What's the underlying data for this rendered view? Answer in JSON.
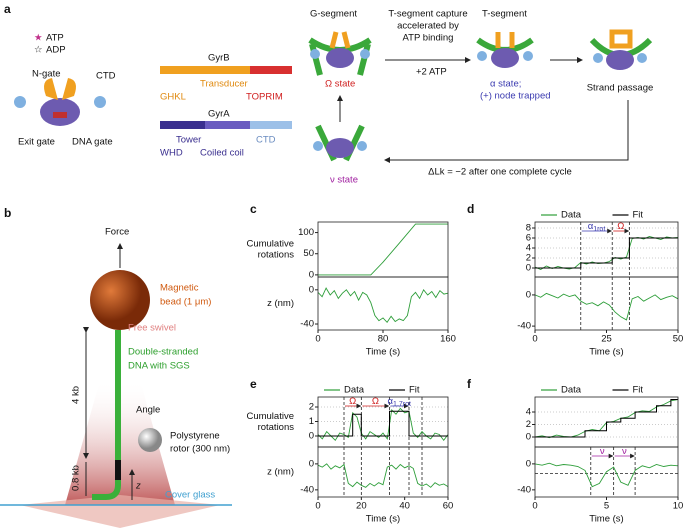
{
  "diagram": {
    "panel_a": "a",
    "panel_b": "b",
    "legend": [
      "ATP",
      "ADP"
    ],
    "parts": [
      "N-gate",
      "CTD",
      "Exit gate",
      "DNA gate"
    ],
    "gyrb": {
      "name": "GyrB",
      "mid": "Transducer",
      "left": "GHKL",
      "right": "TOPRIM"
    },
    "gyra": {
      "name": "GyrA",
      "top_left": "Tower",
      "top_right": "CTD",
      "left": "WHD",
      "mid": "Coiled coil"
    },
    "omega": {
      "segment": "G-segment",
      "state": "Ω state"
    },
    "capture": [
      "T-segment capture",
      "accelerated by",
      "ATP binding"
    ],
    "atp": "+2 ATP",
    "alpha": {
      "segment": "T-segment",
      "state": "α state;",
      "note": "(+) node trapped"
    },
    "passage": "Strand passage",
    "nu": "ν state",
    "cycle": "ΔLk = −2 after one complete cycle",
    "b": {
      "force": "Force",
      "bead": [
        "Magnetic",
        "bead (1 μm)"
      ],
      "swivel": "Free swivel",
      "dna": [
        "Double-stranded",
        "DNA with SGS"
      ],
      "kb4": "4 kb",
      "kb08": "0.8 kb",
      "angle": "Angle",
      "rotor": [
        "Polystyrene",
        "rotor (300 nm)"
      ],
      "z": "z",
      "glass": "Cover glass"
    }
  },
  "chart_data": [
    {
      "type": "line",
      "panel": "c",
      "ylabel": [
        "Cumulative",
        "rotations"
      ],
      "xlim": [
        0,
        160
      ],
      "ylim": [
        -5,
        125
      ],
      "yticks": [
        0,
        50,
        100
      ],
      "series": [
        {
          "color": "#2e9e3a",
          "x": [
            0,
            20,
            40,
            60,
            65,
            80,
            100,
            120,
            140,
            160
          ],
          "values": [
            0,
            0,
            0,
            0,
            0,
            30,
            75,
            120,
            120,
            120
          ]
        }
      ]
    },
    {
      "type": "line",
      "ylabel": [
        "z (nm)"
      ],
      "xlabel": "Time (s)",
      "xlim": [
        0,
        160
      ],
      "ylim": [
        -47,
        15
      ],
      "yticks": [
        -40,
        0
      ],
      "xticks": [
        0,
        80,
        160
      ],
      "series": [
        {
          "color": "#2e9e3a",
          "x": [
            0,
            5,
            10,
            15,
            20,
            25,
            30,
            35,
            40,
            45,
            50,
            55,
            60,
            65,
            70,
            75,
            80,
            85,
            90,
            95,
            100,
            105,
            110,
            115,
            120,
            125,
            130,
            135,
            140,
            145,
            150,
            155,
            160
          ],
          "values": [
            -3,
            -8,
            2,
            -6,
            -1,
            -10,
            -4,
            0,
            -7,
            -2,
            -12,
            -3,
            -6,
            -15,
            -30,
            -36,
            -33,
            -38,
            -31,
            -37,
            -34,
            -36,
            -30,
            -8,
            -3,
            -10,
            0,
            -6,
            -2,
            -9,
            -1,
            -5,
            -4
          ]
        }
      ]
    },
    {
      "type": "line",
      "panel": "d",
      "legend": "top",
      "grid": true,
      "xlim": [
        0,
        50
      ],
      "ylim": [
        -1.8,
        9.2
      ],
      "yticks": [
        0,
        2,
        4,
        6,
        8
      ],
      "vlines": [
        16,
        27,
        33
      ],
      "annotations": [
        {
          "text": "α",
          "sub": "1rot",
          "color": "#3b3bb0"
        },
        {
          "text": "Ω",
          "color": "#d02020"
        }
      ],
      "series": [
        {
          "name": "Data",
          "color": "#2e9e3a",
          "x": [
            0,
            2,
            4,
            6,
            8,
            10,
            12,
            14,
            16,
            18,
            20,
            22,
            24,
            26,
            28,
            30,
            32,
            34,
            36,
            38,
            40,
            42,
            44,
            46,
            48,
            50
          ],
          "values": [
            0.2,
            -0.3,
            0.4,
            -0.1,
            0.3,
            0,
            -0.2,
            0.1,
            1.1,
            0.8,
            1.2,
            0.9,
            1.0,
            1.3,
            2.1,
            1.8,
            2.2,
            5.9,
            6.1,
            5.8,
            6.3,
            6.0,
            5.7,
            6.2,
            6.0,
            6.1
          ]
        },
        {
          "name": "Fit",
          "color": "#000000",
          "x": [
            0,
            16,
            16,
            27,
            27,
            33,
            33,
            50
          ],
          "values": [
            0,
            0,
            1,
            1,
            2,
            2,
            6,
            6
          ]
        }
      ]
    },
    {
      "type": "line",
      "xlabel": "Time (s)",
      "xlim": [
        0,
        50
      ],
      "ylim": [
        -45,
        23
      ],
      "yticks": [
        -40,
        0
      ],
      "xticks": [
        0,
        25,
        50
      ],
      "vlines": [
        16,
        27,
        33
      ],
      "series": [
        {
          "color": "#2e9e3a",
          "x": [
            0,
            2,
            4,
            6,
            8,
            10,
            12,
            14,
            16,
            18,
            20,
            22,
            24,
            26,
            28,
            30,
            32,
            34,
            36,
            38,
            40,
            42,
            44,
            46,
            48,
            50
          ],
          "values": [
            0,
            -3,
            2,
            -1,
            -4,
            1,
            -2,
            0,
            -8,
            -12,
            -10,
            -14,
            -9,
            -13,
            -22,
            -28,
            -32,
            -5,
            -2,
            -8,
            -4,
            0,
            -6,
            -3,
            -1,
            -5
          ]
        }
      ]
    },
    {
      "type": "line",
      "panel": "e",
      "ylabel": [
        "Cumulative",
        "rotations"
      ],
      "legend": "top",
      "grid": true,
      "xlim": [
        0,
        60
      ],
      "ylim": [
        -0.76,
        2.69
      ],
      "yticks": [
        0,
        1,
        2
      ],
      "vlines": [
        12,
        20,
        33,
        42,
        48
      ],
      "annotations": [
        {
          "text": "Ω",
          "color": "#d02020"
        },
        {
          "text": "Ω",
          "color": "#d02020"
        },
        {
          "text": "α",
          "sub": "1.7rot",
          "color": "#3b3bb0"
        }
      ],
      "series": [
        {
          "name": "Data",
          "color": "#2e9e3a",
          "x": [
            0,
            2,
            4,
            6,
            8,
            10,
            12,
            14,
            16,
            18,
            20,
            22,
            24,
            26,
            28,
            30,
            32,
            34,
            36,
            38,
            40,
            42,
            44,
            46,
            48,
            50,
            52,
            54,
            56,
            58,
            60
          ],
          "values": [
            0.1,
            -0.2,
            0.3,
            0,
            -0.3,
            0.2,
            0.1,
            -0.1,
            1.6,
            1.3,
            0.2,
            -0.2,
            0.3,
            0.1,
            -0.1,
            0.2,
            -0.2,
            1.8,
            1.5,
            1.9,
            1.6,
            1.7,
            0.2,
            -0.1,
            0.3,
            0,
            -0.2,
            0.2,
            0.1,
            -0.3,
            0.1
          ]
        },
        {
          "name": "Fit",
          "color": "#000000",
          "x": [
            0,
            16,
            16,
            20,
            20,
            33,
            33,
            42,
            42,
            60
          ],
          "values": [
            0,
            0,
            1.5,
            1.5,
            0,
            0,
            1.7,
            1.7,
            0,
            0
          ]
        }
      ]
    },
    {
      "type": "line",
      "ylabel": [
        "z (nm)"
      ],
      "xlabel": "Time (s)",
      "xlim": [
        0,
        60
      ],
      "ylim": [
        -51,
        26
      ],
      "yticks": [
        -40,
        0
      ],
      "xticks": [
        0,
        20,
        40,
        60
      ],
      "vlines": [
        12,
        20,
        33,
        42,
        48
      ],
      "series": [
        {
          "color": "#2e9e3a",
          "x": [
            0,
            2,
            4,
            6,
            8,
            10,
            12,
            14,
            16,
            18,
            20,
            22,
            24,
            26,
            28,
            30,
            32,
            34,
            36,
            38,
            40,
            42,
            44,
            46,
            48,
            50,
            52,
            54,
            56,
            58,
            60
          ],
          "values": [
            -2,
            -5,
            0,
            -8,
            -3,
            -6,
            -1,
            -30,
            -35,
            -28,
            -33,
            -36,
            -30,
            -34,
            -29,
            -32,
            -5,
            -2,
            -8,
            -1,
            -6,
            -3,
            -7,
            -30,
            -34,
            -31,
            -36,
            -29,
            -33,
            -31,
            -35
          ]
        }
      ]
    },
    {
      "type": "line",
      "panel": "f",
      "legend": "top",
      "grid": true,
      "xlim": [
        0,
        10
      ],
      "ylim": [
        -1.6,
        6.4
      ],
      "yticks": [
        0,
        2,
        4
      ],
      "series": [
        {
          "name": "Data",
          "color": "#2e9e3a",
          "x": [
            0,
            0.5,
            1,
            1.5,
            2,
            2.5,
            3,
            3.5,
            4,
            4.5,
            5,
            5.5,
            6,
            6.5,
            7,
            7.5,
            8,
            8.5,
            9,
            9.5,
            10
          ],
          "values": [
            0,
            0.2,
            -0.1,
            0.3,
            0.1,
            0,
            0.3,
            0.9,
            1.2,
            1.0,
            2.3,
            2.5,
            3.0,
            3.2,
            3.9,
            4.2,
            4.1,
            4.8,
            5.2,
            5.8,
            6.0
          ]
        },
        {
          "name": "Fit",
          "color": "#000000",
          "x": [
            0,
            3.5,
            3.5,
            5,
            5,
            6,
            6,
            7,
            7,
            8.5,
            8.5,
            9.5,
            9.5,
            10
          ],
          "values": [
            0,
            0,
            1,
            1,
            2.4,
            2.4,
            3,
            3,
            4,
            4,
            5,
            5,
            6,
            6
          ]
        }
      ]
    },
    {
      "type": "line",
      "xlabel": "Time (s)",
      "xlim": [
        0,
        10
      ],
      "ylim": [
        -51,
        26
      ],
      "yticks": [
        -40,
        0
      ],
      "xticks": [
        0,
        5,
        10
      ],
      "hline": -15,
      "vlines": [
        3.9,
        5.5,
        7
      ],
      "annotations": [
        {
          "text": "ν",
          "color": "#a020a0"
        },
        {
          "text": "ν",
          "color": "#a020a0"
        }
      ],
      "series": [
        {
          "color": "#2e9e3a",
          "x": [
            0,
            0.5,
            1,
            1.5,
            2,
            2.5,
            3,
            3.5,
            4,
            4.5,
            5,
            5.5,
            6,
            6.5,
            7,
            7.5,
            8,
            8.5,
            9,
            9.5,
            10
          ],
          "values": [
            0,
            -2,
            1,
            -3,
            -1,
            -2,
            -4,
            -10,
            -35,
            -30,
            -12,
            -5,
            -28,
            -33,
            -10,
            -3,
            -6,
            -1,
            -4,
            -2,
            -3
          ]
        }
      ]
    }
  ]
}
